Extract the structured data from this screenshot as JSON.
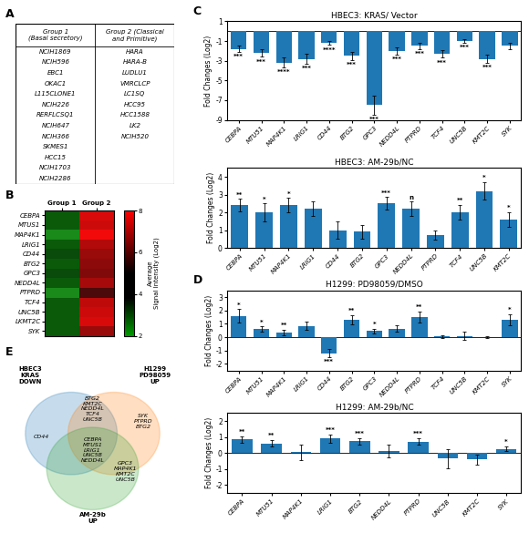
{
  "chart_data": [
    {
      "type": "table",
      "annotations": [
        "A"
      ],
      "series": [
        {
          "name": "Group 1\n(Basal secretory)",
          "values": [
            "NCIH1869",
            "NCIH596",
            "EBC1",
            "OKAC1",
            "L115CLONE1",
            "NCIH226",
            "RERFLCSQ1",
            "NCIH647",
            "NCIH366",
            "SKMES1",
            "HCC15",
            "NCIH1703",
            "NCIH2286"
          ]
        },
        {
          "name": "Group 2 (Classical\nand Primitive)",
          "values": [
            "HARA",
            "HARA-B",
            "LUDLU1",
            "VMRCLCP",
            "LC1SQ",
            "HCC95",
            "HCC1588",
            "LK2",
            "NCIH520"
          ]
        }
      ]
    },
    {
      "type": "heatmap",
      "annotations": [
        "B"
      ],
      "categories": [
        "CEBPA",
        "MTUS1",
        "MAP4K1",
        "LRIG1",
        "CD44",
        "BTG2",
        "GPC3",
        "NEDD4L",
        "PTPRD",
        "TCF4",
        "UNC5B",
        "LKMT2C",
        "SYK"
      ],
      "series": [
        {
          "name": "Group 1",
          "colors": [
            "#0a5a0a",
            "#0a5a0a",
            "#1a8a1a",
            "#0a5a0a",
            "#0a4a0a",
            "#0a5a0a",
            "#0a4a0a",
            "#0a5a0a",
            "#1a8a1a",
            "#0a5a0a",
            "#0a5a0a",
            "#0a5a0a",
            "#0a5a0a"
          ]
        },
        {
          "name": "Group 2",
          "colors": [
            "#d90a0a",
            "#cc0a0a",
            "#f20a0a",
            "#b20a0a",
            "#990a0a",
            "#8c0a0a",
            "#800a0a",
            "#a60a0a",
            "#4c0a0a",
            "#bf0a0a",
            "#cc0a0a",
            "#d90a0a",
            "#990a0a"
          ]
        }
      ],
      "colorbar": {
        "label": "Average\nSignal Intensity (Log2)",
        "range": [
          2,
          8
        ],
        "ticks": [
          2,
          4,
          6,
          8
        ]
      }
    },
    {
      "type": "bar",
      "annotations": [
        "C"
      ],
      "title": "HBEC3: KRAS/ Vector",
      "y_label": "Fold Changes (Log2)",
      "categories": [
        "CEBPA",
        "MTU51",
        "MAP4K1",
        "LRIG1",
        "CD44",
        "BTG2",
        "GPC3",
        "NEDD4L",
        "PTPRD",
        "TCF4",
        "UNC5B",
        "KMT2C",
        "SYK"
      ],
      "values": [
        -1.8,
        -2.2,
        -3.2,
        -2.8,
        -1.2,
        -2.5,
        -7.5,
        -2.0,
        -1.5,
        -2.3,
        -1.0,
        -2.8,
        -1.5
      ],
      "errors": [
        0.3,
        0.4,
        0.5,
        0.5,
        0.2,
        0.4,
        1.0,
        0.35,
        0.3,
        0.4,
        0.2,
        0.4,
        0.3
      ],
      "significance": [
        "***",
        "***",
        "****",
        "***",
        "****",
        "***",
        "***",
        "***",
        "***",
        "***",
        "***",
        "***",
        null
      ],
      "ylim": [
        -9,
        1
      ],
      "yticks": [
        -9,
        -7,
        -5,
        -3,
        -1,
        1
      ]
    },
    {
      "type": "bar",
      "title": "HBEC3: AM-29b/NC",
      "y_label": "Fold Changes (Log2)",
      "categories": [
        "CEBPA",
        "MTU51",
        "MAP4K1",
        "LRIG1",
        "CD44",
        "BTG2",
        "GPC3",
        "NEDD4L",
        "PTPRD",
        "TCF4",
        "UNC5B",
        "KMT2C"
      ],
      "values": [
        2.4,
        2.0,
        2.4,
        2.2,
        1.0,
        0.9,
        2.5,
        2.2,
        0.7,
        2.0,
        3.2,
        1.6
      ],
      "errors": [
        0.35,
        0.5,
        0.4,
        0.4,
        0.5,
        0.4,
        0.35,
        0.4,
        0.25,
        0.4,
        0.5,
        0.4
      ],
      "significance": [
        "**",
        "*",
        "*",
        null,
        null,
        null,
        "***",
        "n",
        null,
        "**",
        "*",
        "*"
      ],
      "ylim": [
        0,
        4.5
      ],
      "yticks": [
        0,
        1,
        2,
        3,
        4
      ]
    },
    {
      "type": "bar",
      "annotations": [
        "D"
      ],
      "title": "H1299: PD98059/DMSO",
      "y_label": "Fold Changes (Log2)",
      "categories": [
        "CEBPA",
        "MTU51",
        "MAP4K1",
        "LRIG1",
        "CD44",
        "BTG2",
        "GPC3",
        "NEDD4L",
        "PTPRD",
        "TCF4",
        "UNC5B",
        "KMT2C",
        "SYK"
      ],
      "values": [
        1.6,
        0.6,
        0.35,
        0.85,
        -1.2,
        1.3,
        0.45,
        0.65,
        1.5,
        0.05,
        0.1,
        0.0,
        1.3
      ],
      "errors": [
        0.5,
        0.2,
        0.2,
        0.3,
        0.3,
        0.35,
        0.2,
        0.25,
        0.4,
        0.1,
        0.3,
        0.05,
        0.4
      ],
      "significance": [
        "*",
        "*",
        "**",
        null,
        "***",
        "**",
        "*",
        null,
        "**",
        null,
        null,
        null,
        "*"
      ],
      "ylim": [
        -2.5,
        3.5
      ],
      "yticks": [
        -2,
        -1,
        0,
        1,
        2,
        3
      ]
    },
    {
      "type": "bar",
      "title": "H1299: AM-29b/NC",
      "y_label": "Fold Changes (Log2)",
      "categories": [
        "CEBPA",
        "MTU51",
        "MAP4K1",
        "LRIG1",
        "BTG2",
        "NEDD4L",
        "PTPRD",
        "UNC5B",
        "KMT2C",
        "SYK"
      ],
      "values": [
        0.85,
        0.6,
        0.05,
        0.9,
        0.75,
        0.15,
        0.72,
        -0.35,
        -0.4,
        0.25
      ],
      "errors": [
        0.2,
        0.2,
        0.5,
        0.25,
        0.2,
        0.4,
        0.2,
        0.6,
        0.3,
        0.15
      ],
      "significance": [
        "**",
        "**",
        null,
        "***",
        "***",
        null,
        "***",
        null,
        null,
        "*"
      ],
      "ylim": [
        -2.5,
        2.5
      ],
      "yticks": [
        -2,
        -1,
        0,
        1,
        2
      ]
    },
    {
      "type": "venn",
      "annotations": [
        "E"
      ],
      "series": [
        {
          "name": "HBEC3\nKRAS\nDOWN"
        },
        {
          "name": "H1299\nPD98059\nUP"
        },
        {
          "name": "AM-29b\nUP"
        }
      ],
      "regions": [
        {
          "sets": [
            "HBEC3\nKRAS\nDOWN",
            "H1299\nPD98059\nUP"
          ],
          "items": [
            "BTG2",
            "KMT2C",
            "NEDD4L",
            "TCF4",
            "UNC5B"
          ]
        },
        {
          "sets": [
            "HBEC3\nKRAS\nDOWN"
          ],
          "items": [
            "CD44"
          ]
        },
        {
          "sets": [
            "H1299\nPD98059\nUP",
            "AM-29b\nUP"
          ],
          "items": [
            "GPC3",
            "MAP4K1",
            "KMT2C",
            "UNC5B"
          ]
        },
        {
          "sets": [
            "HBEC3\nKRAS\nDOWN",
            "H1299\nPD98059\nUP",
            "AM-29b\nUP"
          ],
          "items": [
            "CEBPA",
            "MTUS1",
            "LRIG1",
            "UNC5B",
            "NEDD4L"
          ]
        },
        {
          "sets": [
            "H1299\nPD98059\nUP"
          ],
          "items": [
            "SYK",
            "PTPRD",
            "BTG2"
          ]
        }
      ]
    }
  ]
}
